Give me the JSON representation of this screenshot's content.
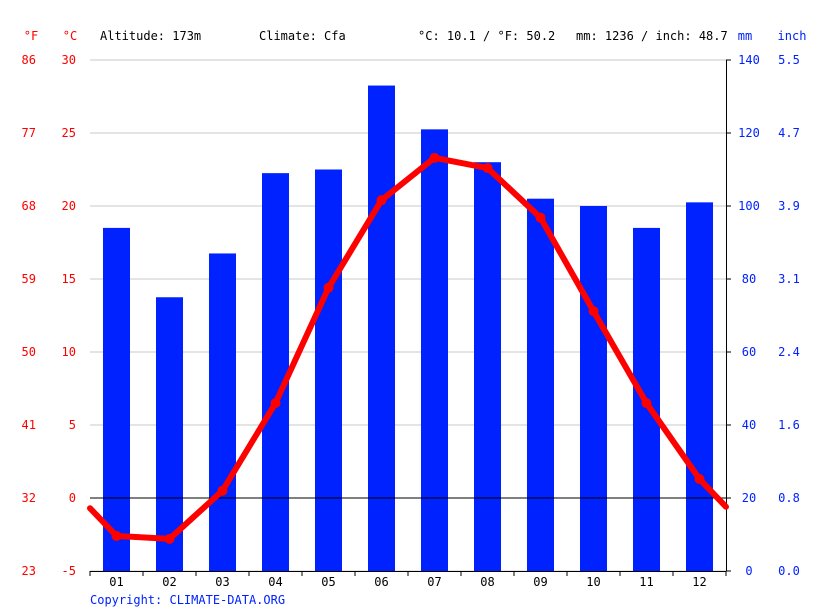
{
  "header": {
    "f_unit": "°F",
    "c_unit": "°C",
    "altitude": "Altitude: 173m",
    "climate": "Climate: Cfa",
    "temp_avg": "°C: 10.1 / °F: 50.2",
    "precip_avg": "mm: 1236 / inch: 48.7",
    "mm_unit": "mm",
    "inch_unit": "inch"
  },
  "copyright": "Copyright: CLIMATE-DATA.ORG",
  "colors": {
    "temperature": "#ff0000",
    "precipitation": "#0022ff",
    "grid": "#c8c8c8",
    "zero_line": "#000000"
  },
  "chart_data": {
    "type": "bar+line",
    "categories": [
      "01",
      "02",
      "03",
      "04",
      "05",
      "06",
      "07",
      "08",
      "09",
      "10",
      "11",
      "12"
    ],
    "series": [
      {
        "type": "bar",
        "axis": "right",
        "unit": "mm",
        "values": [
          94,
          75,
          87,
          109,
          110,
          133,
          121,
          112,
          102,
          100,
          94,
          101
        ]
      },
      {
        "type": "line",
        "axis": "left",
        "unit": "°C",
        "values": [
          -2.6,
          -2.8,
          0.5,
          6.5,
          14.4,
          20.4,
          23.3,
          22.6,
          19.2,
          12.8,
          6.5,
          1.3
        ],
        "edge_start": -0.7,
        "edge_end": -0.6
      }
    ],
    "y_left": {
      "unit": "°C",
      "range": [
        -5,
        30
      ],
      "ticks": [
        -5,
        0,
        5,
        10,
        15,
        20,
        25,
        30
      ]
    },
    "y_left_f": {
      "unit": "°F",
      "ticks": [
        "23",
        "32",
        "41",
        "50",
        "59",
        "68",
        "77",
        "86"
      ]
    },
    "y_right": {
      "unit": "mm",
      "range": [
        0,
        140
      ],
      "ticks": [
        "0",
        "20",
        "40",
        "60",
        "80",
        "100",
        "120",
        "140"
      ]
    },
    "y_right_inch": {
      "unit": "inch",
      "ticks": [
        "0.0",
        "0.8",
        "1.6",
        "2.4",
        "3.1",
        "3.9",
        "4.7",
        "5.5"
      ]
    },
    "grid": true
  }
}
